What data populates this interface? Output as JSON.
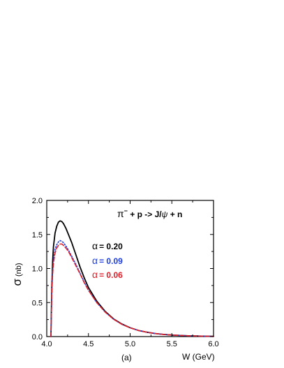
{
  "chart_data": {
    "type": "line",
    "annotation": {
      "pi": "π",
      "minus": "−",
      "rest": " + p -> J/",
      "psi": "ψ",
      "end": "  + n"
    },
    "xlabel": "W (GeV)",
    "ylabel_symbol": "σ",
    "ylabel_unit": "(nb)",
    "panel_label": "(a)",
    "xlim": [
      4.0,
      6.0
    ],
    "ylim": [
      0.0,
      2.0
    ],
    "xticks": [
      "4.0",
      "4.5",
      "5.0",
      "5.5",
      "6.0"
    ],
    "yticks": [
      "0.0",
      "0.5",
      "1.0",
      "1.5",
      "2.0"
    ],
    "grid": false,
    "series": [
      {
        "name": "α = 0.20",
        "alpha_symbol": "α",
        "alpha_value": "= 0.20",
        "color": "#000000",
        "style": "solid",
        "x": [
          4.05,
          4.06,
          4.07,
          4.08,
          4.1,
          4.12,
          4.14,
          4.16,
          4.18,
          4.2,
          4.23,
          4.26,
          4.3,
          4.35,
          4.4,
          4.45,
          4.5,
          4.6,
          4.7,
          4.8,
          4.9,
          5.0,
          5.1,
          5.2,
          5.3,
          5.4,
          5.5,
          5.6,
          5.7,
          5.8,
          5.9,
          6.0
        ],
        "y": [
          0.0,
          0.7,
          1.1,
          1.32,
          1.52,
          1.62,
          1.68,
          1.7,
          1.69,
          1.66,
          1.59,
          1.5,
          1.38,
          1.2,
          1.02,
          0.86,
          0.72,
          0.52,
          0.37,
          0.26,
          0.185,
          0.13,
          0.09,
          0.065,
          0.045,
          0.032,
          0.023,
          0.016,
          0.011,
          0.008,
          0.005,
          0.003
        ]
      },
      {
        "name": "α = 0.09",
        "alpha_symbol": "α",
        "alpha_value": "= 0.09",
        "color": "#1f3fe0",
        "style": "dot",
        "x": [
          4.05,
          4.06,
          4.07,
          4.08,
          4.1,
          4.12,
          4.14,
          4.16,
          4.18,
          4.2,
          4.23,
          4.26,
          4.3,
          4.35,
          4.4,
          4.45,
          4.5,
          4.6,
          4.7,
          4.8,
          4.9,
          5.0,
          5.1,
          5.2,
          5.3,
          5.4,
          5.5,
          5.6,
          5.7,
          5.8,
          5.9,
          6.0
        ],
        "y": [
          0.0,
          0.62,
          0.95,
          1.12,
          1.28,
          1.35,
          1.39,
          1.41,
          1.4,
          1.38,
          1.33,
          1.27,
          1.18,
          1.06,
          0.93,
          0.8,
          0.68,
          0.5,
          0.36,
          0.255,
          0.18,
          0.128,
          0.09,
          0.065,
          0.045,
          0.032,
          0.023,
          0.016,
          0.011,
          0.008,
          0.005,
          0.003
        ]
      },
      {
        "name": "α = 0.06",
        "alpha_symbol": "α",
        "alpha_value": "= 0.06",
        "color": "#e0202a",
        "style": "dash",
        "x": [
          4.05,
          4.06,
          4.07,
          4.08,
          4.1,
          4.12,
          4.14,
          4.16,
          4.18,
          4.2,
          4.23,
          4.26,
          4.3,
          4.35,
          4.4,
          4.45,
          4.5,
          4.6,
          4.7,
          4.8,
          4.9,
          5.0,
          5.1,
          5.2,
          5.3,
          5.4,
          5.5,
          5.6,
          5.7,
          5.8,
          5.9,
          6.0
        ],
        "y": [
          0.0,
          0.6,
          0.92,
          1.08,
          1.23,
          1.3,
          1.34,
          1.36,
          1.36,
          1.34,
          1.3,
          1.25,
          1.16,
          1.04,
          0.92,
          0.79,
          0.68,
          0.5,
          0.36,
          0.255,
          0.18,
          0.128,
          0.09,
          0.065,
          0.045,
          0.032,
          0.023,
          0.016,
          0.011,
          0.008,
          0.005,
          0.003
        ]
      }
    ]
  }
}
